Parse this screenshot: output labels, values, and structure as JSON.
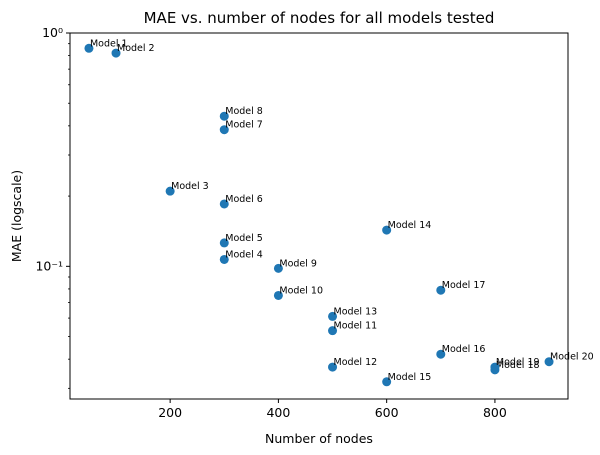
{
  "chart_data": {
    "type": "scatter",
    "title": "MAE vs. number of nodes for all models tested",
    "xlabel": "Number of nodes",
    "ylabel": "MAE (logscale)",
    "yscale": "log",
    "xlim": [
      15,
      935
    ],
    "ylim": [
      0.027,
      1.0
    ],
    "grid": false,
    "color": "#1f77b4",
    "x_ticks": [
      200,
      400,
      600,
      800
    ],
    "x_tick_labels": [
      "200",
      "400",
      "600",
      "800"
    ],
    "y_ticks": [
      0.1,
      1.0
    ],
    "y_tick_labels": [
      "10⁻¹",
      "10⁰"
    ],
    "points": [
      {
        "label": "Model 1",
        "x": 50,
        "y": 0.86
      },
      {
        "label": "Model 2",
        "x": 100,
        "y": 0.82
      },
      {
        "label": "Model 3",
        "x": 200,
        "y": 0.21
      },
      {
        "label": "Model 4",
        "x": 300,
        "y": 0.107
      },
      {
        "label": "Model 5",
        "x": 300,
        "y": 0.126
      },
      {
        "label": "Model 6",
        "x": 300,
        "y": 0.185
      },
      {
        "label": "Model 7",
        "x": 300,
        "y": 0.385
      },
      {
        "label": "Model 8",
        "x": 300,
        "y": 0.44
      },
      {
        "label": "Model 9",
        "x": 400,
        "y": 0.098
      },
      {
        "label": "Model 10",
        "x": 400,
        "y": 0.075
      },
      {
        "label": "Model 11",
        "x": 500,
        "y": 0.053
      },
      {
        "label": "Model 12",
        "x": 500,
        "y": 0.037
      },
      {
        "label": "Model 13",
        "x": 500,
        "y": 0.061
      },
      {
        "label": "Model 14",
        "x": 600,
        "y": 0.143
      },
      {
        "label": "Model 15",
        "x": 600,
        "y": 0.032
      },
      {
        "label": "Model 16",
        "x": 700,
        "y": 0.042
      },
      {
        "label": "Model 17",
        "x": 700,
        "y": 0.079
      },
      {
        "label": "Model 18",
        "x": 800,
        "y": 0.036
      },
      {
        "label": "Model 19",
        "x": 800,
        "y": 0.037
      },
      {
        "label": "Model 20",
        "x": 900,
        "y": 0.039
      }
    ]
  }
}
